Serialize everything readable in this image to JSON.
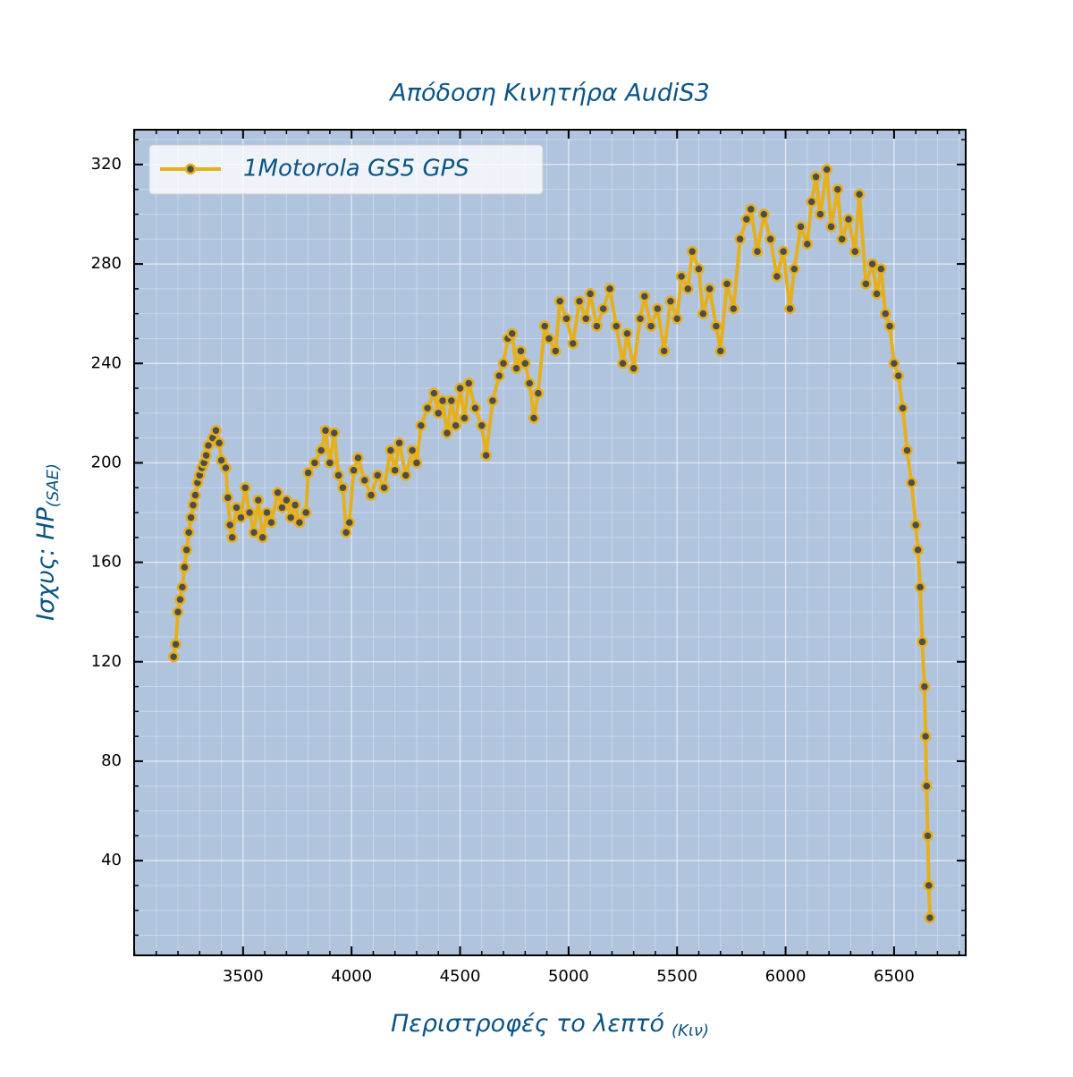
{
  "chart_data": {
    "type": "line",
    "title": "Απόδοση Κινητήρα AudiS3",
    "xlabel": "Περιστροφές το λεπτό",
    "xlabel_sub": "(Κιν)",
    "ylabel": "Ισχυς: HP",
    "ylabel_sub": "(SAE)",
    "x": [
      3180,
      3190,
      3200,
      3210,
      3220,
      3230,
      3240,
      3250,
      3260,
      3270,
      3280,
      3290,
      3300,
      3310,
      3320,
      3330,
      3340,
      3360,
      3375,
      3390,
      3400,
      3420,
      3430,
      3440,
      3450,
      3470,
      3490,
      3510,
      3530,
      3550,
      3570,
      3590,
      3610,
      3630,
      3660,
      3680,
      3700,
      3720,
      3740,
      3760,
      3790,
      3800,
      3830,
      3860,
      3880,
      3900,
      3920,
      3940,
      3960,
      3975,
      3990,
      4010,
      4030,
      4060,
      4090,
      4120,
      4150,
      4180,
      4200,
      4220,
      4250,
      4280,
      4300,
      4320,
      4350,
      4380,
      4400,
      4420,
      4440,
      4460,
      4480,
      4500,
      4520,
      4540,
      4570,
      4600,
      4620,
      4650,
      4680,
      4700,
      4720,
      4740,
      4760,
      4780,
      4800,
      4820,
      4840,
      4860,
      4890,
      4910,
      4940,
      4960,
      4990,
      5020,
      5050,
      5080,
      5100,
      5130,
      5160,
      5190,
      5220,
      5250,
      5270,
      5300,
      5330,
      5350,
      5380,
      5410,
      5440,
      5470,
      5500,
      5520,
      5550,
      5570,
      5600,
      5620,
      5650,
      5680,
      5700,
      5730,
      5760,
      5790,
      5820,
      5840,
      5870,
      5900,
      5930,
      5960,
      5990,
      6020,
      6040,
      6070,
      6100,
      6120,
      6140,
      6160,
      6190,
      6210,
      6240,
      6260,
      6290,
      6320,
      6340,
      6370,
      6400,
      6420,
      6440,
      6460,
      6480,
      6500,
      6520,
      6540,
      6560,
      6580,
      6600,
      6610,
      6620,
      6630,
      6640,
      6645,
      6650,
      6655,
      6660,
      6665
    ],
    "series": [
      {
        "name": "1Motorola GS5 GPS",
        "color": "#e6b01c",
        "marker_color": "#4d4d4d",
        "values": [
          122,
          127,
          140,
          145,
          150,
          158,
          165,
          172,
          178,
          183,
          187,
          192,
          195,
          198,
          200,
          203,
          207,
          210,
          213,
          208,
          201,
          198,
          186,
          175,
          170,
          182,
          178,
          190,
          180,
          172,
          185,
          170,
          180,
          176,
          188,
          182,
          185,
          178,
          183,
          176,
          180,
          196,
          200,
          205,
          213,
          200,
          212,
          195,
          190,
          172,
          176,
          197,
          202,
          193,
          187,
          195,
          190,
          205,
          197,
          208,
          195,
          205,
          200,
          215,
          222,
          228,
          220,
          225,
          212,
          225,
          215,
          230,
          218,
          232,
          222,
          215,
          203,
          225,
          235,
          240,
          250,
          252,
          238,
          245,
          240,
          232,
          218,
          228,
          255,
          250,
          245,
          265,
          258,
          248,
          265,
          258,
          268,
          255,
          262,
          270,
          255,
          240,
          252,
          238,
          258,
          267,
          255,
          262,
          245,
          265,
          258,
          275,
          270,
          285,
          278,
          260,
          270,
          255,
          245,
          272,
          262,
          290,
          298,
          302,
          285,
          300,
          290,
          275,
          285,
          262,
          278,
          295,
          288,
          305,
          315,
          300,
          318,
          295,
          310,
          290,
          298,
          285,
          308,
          272,
          280,
          268,
          278,
          260,
          255,
          240,
          235,
          222,
          205,
          192,
          175,
          165,
          150,
          128,
          110,
          90,
          70,
          50,
          30,
          17
        ]
      }
    ],
    "xlim": [
      2998,
      6830
    ],
    "ylim": [
      1.9,
      334
    ],
    "xticks": [
      3500,
      4000,
      4500,
      5000,
      5500,
      6000,
      6500
    ],
    "yticks": [
      40,
      80,
      120,
      160,
      200,
      240,
      280,
      320
    ],
    "grid": true,
    "legend": "upper left",
    "background": "#b0c4de",
    "text_color": "#0b5485"
  }
}
